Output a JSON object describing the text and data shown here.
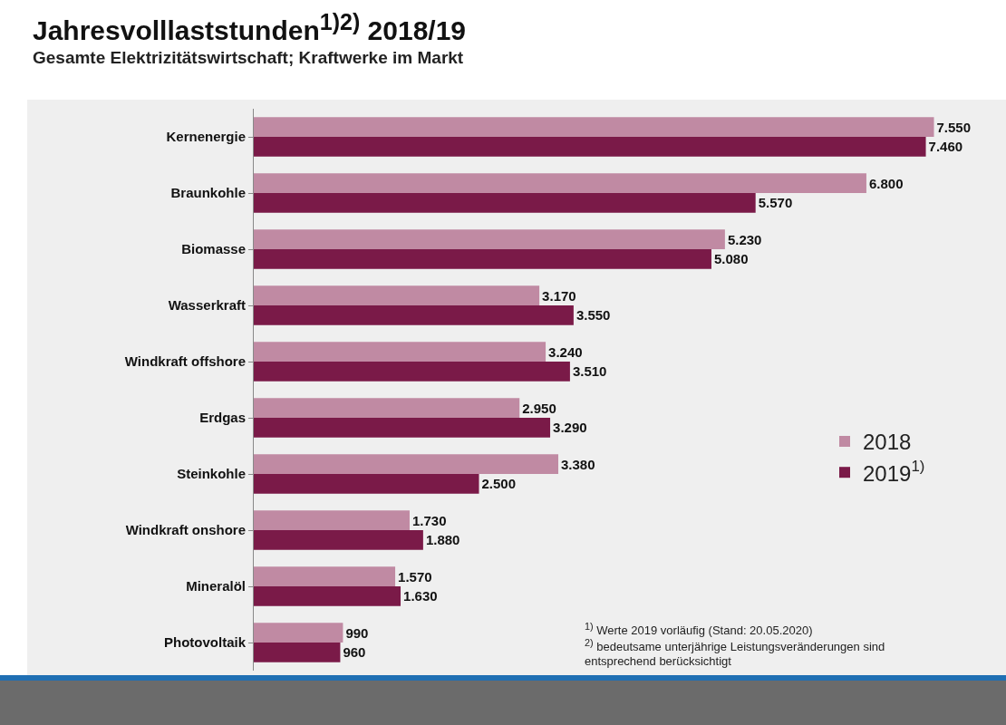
{
  "chart_data": {
    "type": "bar",
    "orientation": "horizontal",
    "title": "Jahresvolllaststunden$^{1)2)}$ 2018/19",
    "subtitle": "Gesamte Elektrizitätswirtschaft; Kraftwerke im Markt",
    "categories": [
      "Kernenergie",
      "Braunkohle",
      "Biomasse",
      "Wasserkraft",
      "Windkraft offshore",
      "Erdgas",
      "Steinkohle",
      "Windkraft onshore",
      "Mineralöl",
      "Photovoltaik"
    ],
    "series": [
      {
        "name": "2018",
        "color": "#c08aa3",
        "values": [
          7550,
          6800,
          5230,
          3170,
          3240,
          2950,
          3380,
          1730,
          1570,
          990
        ],
        "value_labels": [
          "7.550",
          "6.800",
          "5.230",
          "3.170",
          "3.240",
          "2.950",
          "3.380",
          "1.730",
          "1.570",
          "990"
        ]
      },
      {
        "name": "2019$^{1)}$",
        "color": "#7a1a48",
        "values": [
          7460,
          5570,
          5080,
          3550,
          3510,
          3290,
          2500,
          1880,
          1630,
          960
        ],
        "value_labels": [
          "7.460",
          "5.570",
          "5.080",
          "3.550",
          "3.510",
          "3.290",
          "2.500",
          "1.880",
          "1.630",
          "960"
        ]
      }
    ],
    "legend": "right",
    "grid": false,
    "annotations": [
      "$^{1)}$ Werte 2019 vorläufig (Stand: 20.05.2020)",
      "$^{2)}$ bedeutsame unterjährige Leistungsveränderungen sind entsprechend berücksichtigt"
    ]
  }
}
